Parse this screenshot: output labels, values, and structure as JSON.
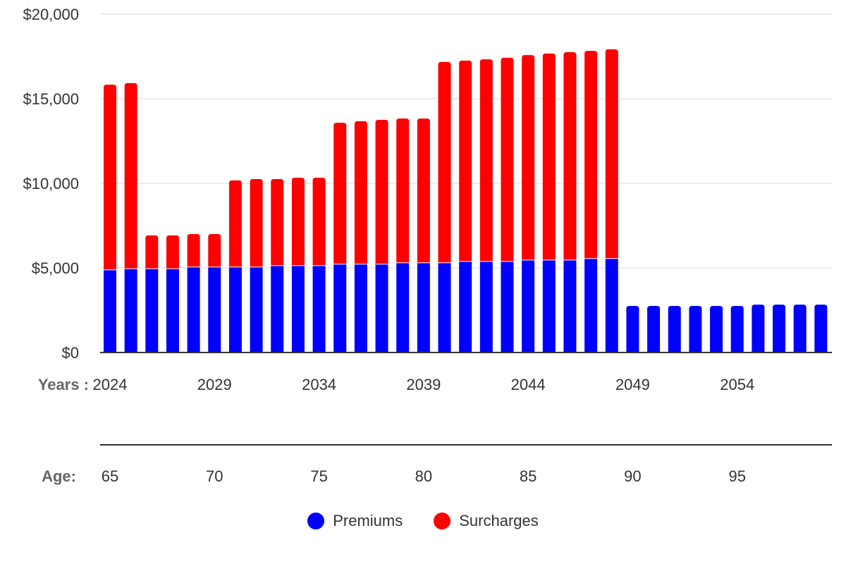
{
  "chart_data": {
    "type": "bar",
    "stacked": true,
    "title": "",
    "x_label": "Years :",
    "secondary_x_label": "Age:",
    "categories": [
      2024,
      2025,
      2026,
      2027,
      2028,
      2029,
      2030,
      2031,
      2032,
      2033,
      2034,
      2035,
      2036,
      2037,
      2038,
      2039,
      2040,
      2041,
      2042,
      2043,
      2044,
      2045,
      2046,
      2047,
      2048,
      2049,
      2050,
      2051,
      2052,
      2053,
      2054,
      2055,
      2056,
      2057,
      2058
    ],
    "ages": [
      65,
      66,
      67,
      68,
      69,
      70,
      71,
      72,
      73,
      74,
      75,
      76,
      77,
      78,
      79,
      80,
      81,
      82,
      83,
      84,
      85,
      86,
      87,
      88,
      89,
      90,
      91,
      92,
      93,
      94,
      95,
      96,
      97,
      98,
      99
    ],
    "x_tick_labels": [
      "2024",
      "2029",
      "2034",
      "2039",
      "2044",
      "2049",
      "2054"
    ],
    "age_tick_labels": [
      "65",
      "70",
      "75",
      "80",
      "85",
      "90",
      "95"
    ],
    "y_tick_labels": [
      "$0",
      "$5,000",
      "$10,000",
      "$15,000",
      "$20,000"
    ],
    "ylim": [
      0,
      20000
    ],
    "grid": true,
    "legend_position": "bottom",
    "series": [
      {
        "name": "Premiums",
        "color": "#0000ff",
        "values": [
          4860,
          4930,
          4930,
          4930,
          5030,
          5030,
          5030,
          5030,
          5110,
          5110,
          5110,
          5200,
          5200,
          5200,
          5280,
          5280,
          5280,
          5360,
          5360,
          5360,
          5440,
          5440,
          5440,
          5530,
          5530,
          2750,
          2750,
          2750,
          2750,
          2750,
          2750,
          2830,
          2830,
          2830,
          2830
        ]
      },
      {
        "name": "Surcharges",
        "color": "#ff0000",
        "values": [
          10970,
          10990,
          1990,
          1990,
          1970,
          1970,
          5140,
          5220,
          5140,
          5220,
          5220,
          8380,
          8470,
          8550,
          8550,
          8550,
          11890,
          11890,
          11970,
          12060,
          12140,
          12230,
          12310,
          12300,
          12390,
          0,
          0,
          0,
          0,
          0,
          0,
          0,
          0,
          0,
          0
        ]
      }
    ]
  }
}
